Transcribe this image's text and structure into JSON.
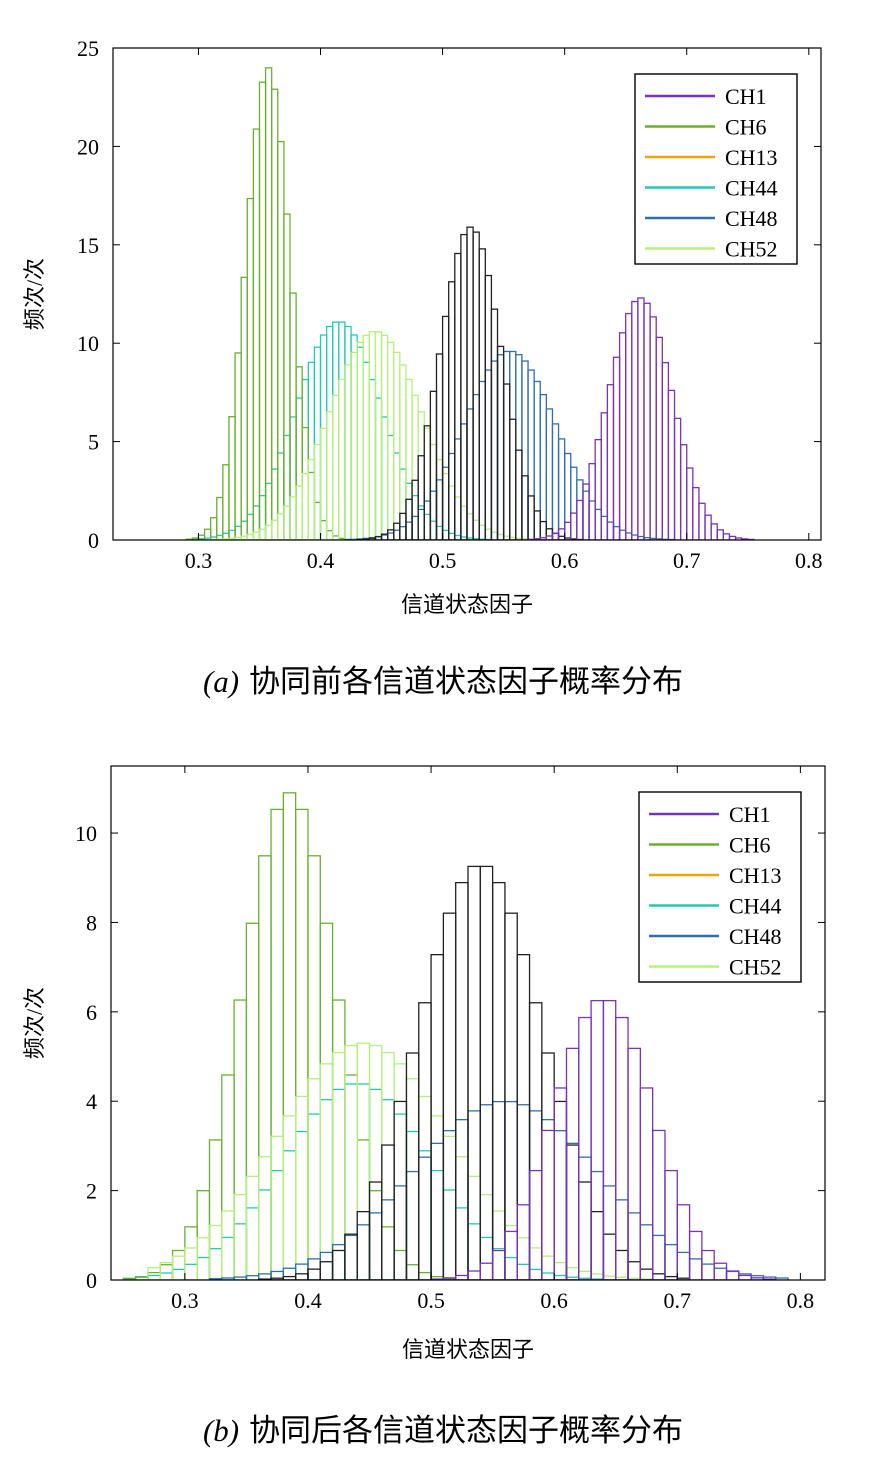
{
  "colors": {
    "CH1": "#7a33b8",
    "CH6": "#6ab02e",
    "CH13": "#f0a30a",
    "CH44": "#24c9b5",
    "CH48": "#2f6fb0",
    "CH52": "#b5f07a",
    "dark": "#222222"
  },
  "captions": [
    {
      "tag": "(a)",
      "text": "协同前各信道状态因子概率分布"
    },
    {
      "tag": "(b)",
      "text": "协同后各信道状态因子概率分布"
    }
  ],
  "chart_data": [
    {
      "type": "histogram",
      "xlabel": "信道状态因子",
      "ylabel": "频次/次",
      "xlim": [
        0.23,
        0.81
      ],
      "ylim": [
        0,
        25
      ],
      "xticks": [
        "0.3",
        "0.4",
        "0.5",
        "0.6",
        "0.7",
        "0.8"
      ],
      "yticks": [
        "0",
        "5",
        "10",
        "15",
        "20",
        "25"
      ],
      "grid": false,
      "legend_position": "top-right",
      "legend": [
        "CH1",
        "CH6",
        "CH13",
        "CH44",
        "CH48",
        "CH52"
      ],
      "bin_width": 0.005,
      "series": [
        {
          "name": "CH44",
          "color_key": "CH44",
          "center": 0.415,
          "sd": 0.035,
          "peak": 11.1,
          "range": [
            0.23,
            0.56
          ]
        },
        {
          "name": "CH6",
          "color_key": "CH6",
          "center": 0.357,
          "sd": 0.018,
          "peak": 24.0,
          "range": [
            0.26,
            0.43
          ]
        },
        {
          "name": "CH52",
          "color_key": "CH52",
          "center": 0.445,
          "sd": 0.038,
          "peak": 10.6,
          "range": [
            0.28,
            0.6
          ]
        },
        {
          "name": "CH48",
          "color_key": "CH48",
          "center": 0.555,
          "sd": 0.038,
          "peak": 9.6,
          "range": [
            0.4,
            0.7
          ]
        },
        {
          "name": "CH13",
          "color_key": "dark",
          "center": 0.523,
          "sd": 0.025,
          "peak": 15.9,
          "range": [
            0.4,
            0.63
          ]
        },
        {
          "name": "CH1",
          "color_key": "CH1",
          "center": 0.662,
          "sd": 0.026,
          "peak": 12.3,
          "range": [
            0.55,
            0.8
          ]
        }
      ]
    },
    {
      "type": "histogram",
      "xlabel": "信道状态因子",
      "ylabel": "频次/次",
      "xlim": [
        0.24,
        0.82
      ],
      "ylim": [
        0,
        11.5
      ],
      "xticks": [
        "0.3",
        "0.4",
        "0.5",
        "0.6",
        "0.7",
        "0.8"
      ],
      "yticks": [
        "0",
        "2",
        "4",
        "6",
        "8",
        "10"
      ],
      "grid": false,
      "legend_position": "top-right",
      "legend": [
        "CH1",
        "CH6",
        "CH13",
        "CH44",
        "CH48",
        "CH52"
      ],
      "bin_width": 0.01,
      "series": [
        {
          "name": "CH44",
          "color_key": "CH44",
          "center": 0.44,
          "sd": 0.06,
          "peak": 4.4,
          "range": [
            0.25,
            0.7
          ]
        },
        {
          "name": "CH6",
          "color_key": "CH6",
          "center": 0.385,
          "sd": 0.038,
          "peak": 10.9,
          "range": [
            0.25,
            0.55
          ]
        },
        {
          "name": "CH52",
          "color_key": "CH52",
          "center": 0.445,
          "sd": 0.07,
          "peak": 5.3,
          "range": [
            0.27,
            0.74
          ]
        },
        {
          "name": "CH48",
          "color_key": "CH48",
          "center": 0.56,
          "sd": 0.075,
          "peak": 4.0,
          "range": [
            0.3,
            0.79
          ]
        },
        {
          "name": "CH13",
          "color_key": "dark",
          "center": 0.54,
          "sd": 0.05,
          "peak": 9.3,
          "range": [
            0.33,
            0.71
          ]
        },
        {
          "name": "CH1",
          "color_key": "CH1",
          "center": 0.64,
          "sd": 0.04,
          "peak": 6.3,
          "range": [
            0.49,
            0.81
          ]
        }
      ]
    }
  ]
}
